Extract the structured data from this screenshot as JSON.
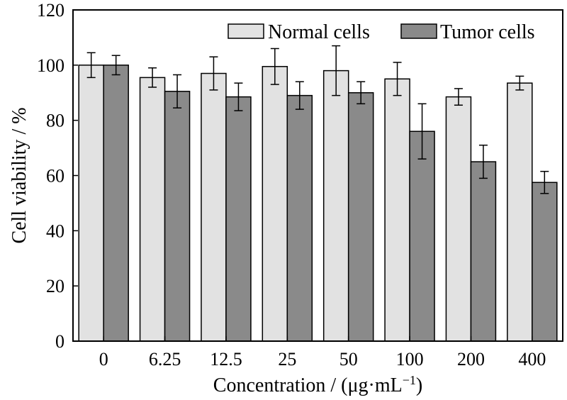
{
  "chart_data": {
    "type": "bar",
    "categories": [
      "0",
      "6.25",
      "12.5",
      "25",
      "50",
      "100",
      "200",
      "400"
    ],
    "series": [
      {
        "name": "Normal cells",
        "color": "#e2e2e2",
        "values": [
          100,
          95.5,
          97,
          99.5,
          98,
          95,
          88.5,
          93.5
        ],
        "errors": [
          4.5,
          3.5,
          6,
          6.5,
          9,
          6,
          3,
          2.5
        ]
      },
      {
        "name": "Tumor cells",
        "color": "#8a8a8a",
        "values": [
          100,
          90.5,
          88.5,
          89,
          90,
          76,
          65,
          57.5
        ],
        "errors": [
          3.5,
          6,
          5,
          5,
          4,
          10,
          6,
          4
        ]
      }
    ],
    "xlabel": "Concentration / (μg·mL",
    "xlabel_sup": "−1",
    "xlabel_end": ")",
    "ylabel": "Cell viability / %",
    "ylim": [
      0,
      120
    ],
    "yticks": [
      0,
      20,
      40,
      60,
      80,
      100,
      120
    ],
    "legend": "top-right",
    "grid": false
  }
}
